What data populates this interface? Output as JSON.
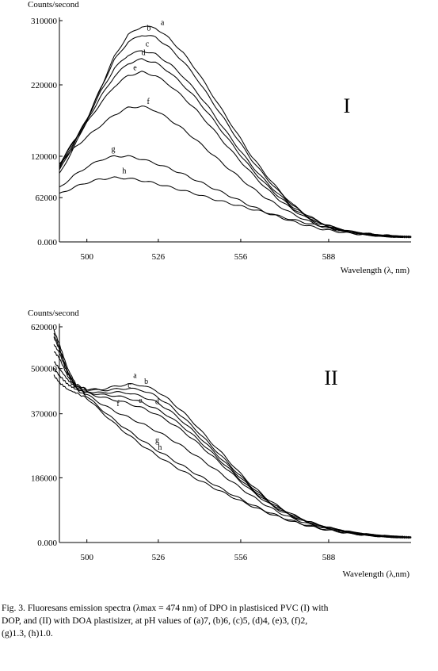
{
  "chart_data": [
    {
      "type": "line",
      "panel_label": "I",
      "ylabel": "Counts/second",
      "xlabel": "Wavelength (λ, nm)",
      "ylim": [
        0,
        310000
      ],
      "xlim": [
        490,
        618
      ],
      "xticks": [
        500,
        526,
        556,
        588
      ],
      "yticks": [
        0,
        62000,
        120000,
        220000,
        310000
      ],
      "ytick_labels": [
        "0.000",
        "62000",
        "120000",
        "220000",
        "310000"
      ],
      "series": [
        {
          "name": "a",
          "x": [
            490,
            495,
            500,
            505,
            510,
            515,
            520,
            525,
            530,
            535,
            540,
            545,
            550,
            555,
            560,
            565,
            570,
            575,
            580,
            585,
            590,
            595,
            600,
            605,
            610,
            615,
            618
          ],
          "y": [
            95000,
            130000,
            170000,
            215000,
            260000,
            290000,
            302000,
            300000,
            285000,
            265000,
            240000,
            210000,
            180000,
            150000,
            120000,
            95000,
            72000,
            52000,
            38000,
            27000,
            20000,
            15000,
            12000,
            9500,
            8000,
            7200,
            7000
          ]
        },
        {
          "name": "b",
          "x": [
            490,
            495,
            500,
            505,
            510,
            515,
            520,
            525,
            530,
            535,
            540,
            545,
            550,
            555,
            560,
            565,
            570,
            575,
            580,
            585,
            590,
            595,
            600,
            605,
            610,
            615,
            618
          ],
          "y": [
            100000,
            135000,
            172000,
            215000,
            255000,
            280000,
            290000,
            287000,
            272000,
            253000,
            229000,
            200000,
            172000,
            143000,
            115000,
            91000,
            70000,
            51000,
            37000,
            27000,
            20000,
            15000,
            12000,
            9500,
            8000,
            7200,
            7000
          ]
        },
        {
          "name": "c",
          "x": [
            490,
            495,
            500,
            505,
            510,
            515,
            520,
            525,
            530,
            535,
            540,
            545,
            550,
            555,
            560,
            565,
            570,
            575,
            580,
            585,
            590,
            595,
            600,
            605,
            610,
            615,
            618
          ],
          "y": [
            103000,
            138000,
            172000,
            210000,
            243000,
            262000,
            268000,
            263000,
            250000,
            232000,
            210000,
            185000,
            158000,
            132000,
            107000,
            85000,
            66000,
            49000,
            36000,
            26000,
            19500,
            14800,
            11800,
            9500,
            8000,
            7200,
            7000
          ]
        },
        {
          "name": "d",
          "x": [
            490,
            495,
            500,
            505,
            510,
            515,
            520,
            525,
            530,
            535,
            540,
            545,
            550,
            555,
            560,
            565,
            570,
            575,
            580,
            585,
            590,
            595,
            600,
            605,
            610,
            615,
            618
          ],
          "y": [
            106000,
            140000,
            170000,
            203000,
            232000,
            250000,
            256000,
            251000,
            238000,
            220000,
            200000,
            176000,
            151000,
            126000,
            102000,
            81000,
            63000,
            47000,
            35000,
            25500,
            19000,
            14600,
            11600,
            9400,
            7900,
            7200,
            7000
          ]
        },
        {
          "name": "e",
          "x": [
            490,
            495,
            500,
            505,
            510,
            515,
            520,
            525,
            530,
            535,
            540,
            545,
            550,
            555,
            560,
            565,
            570,
            575,
            580,
            585,
            590,
            595,
            600,
            605,
            610,
            615,
            618
          ],
          "y": [
            109000,
            140000,
            167000,
            194000,
            218000,
            233000,
            238000,
            233000,
            220000,
            203000,
            184000,
            162000,
            139000,
            117000,
            96000,
            76000,
            59000,
            45000,
            33500,
            24500,
            18500,
            14300,
            11400,
            9300,
            7900,
            7200,
            7000
          ]
        },
        {
          "name": "f",
          "x": [
            490,
            495,
            500,
            505,
            510,
            515,
            520,
            525,
            530,
            535,
            540,
            545,
            550,
            555,
            560,
            565,
            570,
            575,
            580,
            585,
            590,
            595,
            600,
            605,
            610,
            615,
            618
          ],
          "y": [
            110000,
            130000,
            147000,
            163000,
            178000,
            188000,
            190000,
            184000,
            172000,
            158000,
            142000,
            125000,
            108000,
            92000,
            76000,
            62000,
            50000,
            39000,
            30000,
            22500,
            17500,
            13700,
            11000,
            9100,
            7800,
            7100,
            7000
          ]
        },
        {
          "name": "g",
          "x": [
            490,
            495,
            500,
            505,
            510,
            515,
            520,
            525,
            530,
            535,
            540,
            545,
            550,
            555,
            560,
            565,
            570,
            575,
            580,
            585,
            590,
            595,
            600,
            605,
            610,
            615,
            618
          ],
          "y": [
            76000,
            92000,
            105000,
            115000,
            120000,
            120000,
            116000,
            110000,
            103000,
            95000,
            86000,
            77000,
            68000,
            59000,
            50000,
            42000,
            35000,
            28500,
            23000,
            18500,
            15000,
            12500,
            10500,
            9000,
            7800,
            7100,
            7000
          ]
        },
        {
          "name": "h",
          "x": [
            490,
            495,
            500,
            505,
            510,
            515,
            520,
            525,
            530,
            535,
            540,
            545,
            550,
            555,
            560,
            565,
            570,
            575,
            580,
            585,
            590,
            595,
            600,
            605,
            610,
            615,
            618
          ],
          "y": [
            67000,
            76000,
            83000,
            88000,
            90000,
            89000,
            86000,
            82000,
            77000,
            72000,
            67000,
            61000,
            56000,
            51000,
            46000,
            41000,
            36000,
            31000,
            26500,
            22000,
            18000,
            14800,
            12200,
            10200,
            8700,
            7600,
            7200
          ]
        }
      ]
    },
    {
      "type": "line",
      "panel_label": "II",
      "ylabel": "Counts/second",
      "xlabel": "Wavelength (λ,nm)",
      "ylim": [
        0,
        620000
      ],
      "xlim": [
        490,
        618
      ],
      "xticks": [
        500,
        526,
        556,
        588
      ],
      "yticks": [
        0,
        186000,
        370000,
        500000,
        620000
      ],
      "ytick_labels": [
        "0.000",
        "186000",
        "370000",
        "500000",
        "620000"
      ],
      "series": [
        {
          "name": "a",
          "x": [
            488,
            490,
            493,
            496,
            500,
            505,
            510,
            515,
            520,
            525,
            530,
            535,
            540,
            545,
            550,
            555,
            560,
            565,
            570,
            575,
            580,
            585,
            590,
            595,
            600,
            605,
            610,
            615,
            618
          ],
          "y": [
            600000,
            560000,
            490000,
            450000,
            440000,
            440000,
            448000,
            455000,
            452000,
            438000,
            410000,
            375000,
            335000,
            290000,
            250000,
            205000,
            165000,
            130000,
            102000,
            80000,
            62000,
            49000,
            39000,
            31000,
            25000,
            20500,
            17500,
            15500,
            14800
          ]
        },
        {
          "name": "b",
          "x": [
            488,
            490,
            493,
            496,
            500,
            505,
            510,
            515,
            520,
            525,
            530,
            535,
            540,
            545,
            550,
            555,
            560,
            565,
            570,
            575,
            580,
            585,
            590,
            595,
            600,
            605,
            610,
            615,
            618
          ],
          "y": [
            610000,
            570000,
            500000,
            455000,
            440000,
            437000,
            440000,
            443000,
            438000,
            422000,
            395000,
            360000,
            322000,
            280000,
            240000,
            198000,
            160000,
            126000,
            99000,
            78000,
            61000,
            48000,
            38500,
            30500,
            24800,
            20300,
            17400,
            15500,
            14800
          ]
        },
        {
          "name": "c",
          "x": [
            488,
            490,
            493,
            496,
            500,
            505,
            510,
            515,
            520,
            525,
            530,
            535,
            540,
            545,
            550,
            555,
            560,
            565,
            570,
            575,
            580,
            585,
            590,
            595,
            600,
            605,
            610,
            615,
            618
          ],
          "y": [
            590000,
            555000,
            490000,
            450000,
            435000,
            430000,
            432000,
            430000,
            420000,
            405000,
            380000,
            347000,
            311000,
            271000,
            232000,
            193000,
            156000,
            123000,
            97000,
            76500,
            60000,
            47500,
            38000,
            30300,
            24600,
            20200,
            17300,
            15400,
            14800
          ]
        },
        {
          "name": "d",
          "x": [
            488,
            490,
            493,
            496,
            500,
            505,
            510,
            515,
            520,
            525,
            530,
            535,
            540,
            545,
            550,
            555,
            560,
            565,
            570,
            575,
            580,
            585,
            590,
            595,
            600,
            605,
            610,
            615,
            618
          ],
          "y": [
            570000,
            545000,
            485000,
            448000,
            432000,
            425000,
            422000,
            415000,
            403000,
            385000,
            362000,
            333000,
            299000,
            262000,
            225000,
            187000,
            152000,
            121000,
            95000,
            75500,
            59500,
            47000,
            37800,
            30100,
            24500,
            20100,
            17200,
            15400,
            14800
          ]
        },
        {
          "name": "e",
          "x": [
            488,
            490,
            493,
            496,
            500,
            505,
            510,
            515,
            520,
            525,
            530,
            535,
            540,
            545,
            550,
            555,
            560,
            565,
            570,
            575,
            580,
            585,
            590,
            595,
            600,
            605,
            610,
            615,
            618
          ],
          "y": [
            550000,
            530000,
            478000,
            445000,
            430000,
            418000,
            410000,
            400000,
            387000,
            370000,
            347000,
            320000,
            288000,
            253000,
            218000,
            182000,
            148000,
            118000,
            93000,
            74000,
            58500,
            46500,
            37400,
            30000,
            24400,
            20000,
            17200,
            15300,
            14800
          ]
        },
        {
          "name": "f",
          "x": [
            488,
            490,
            493,
            496,
            500,
            505,
            510,
            515,
            520,
            525,
            530,
            535,
            540,
            545,
            550,
            555,
            560,
            565,
            570,
            575,
            580,
            585,
            590,
            595,
            600,
            605,
            610,
            615,
            618
          ],
          "y": [
            520000,
            500000,
            468000,
            445000,
            425000,
            400000,
            378000,
            360000,
            342000,
            322000,
            300000,
            275000,
            248000,
            220000,
            191000,
            162000,
            134000,
            108000,
            86000,
            69000,
            55000,
            44000,
            35800,
            29000,
            23800,
            19700,
            17000,
            15200,
            14800
          ]
        },
        {
          "name": "g",
          "x": [
            488,
            490,
            493,
            496,
            500,
            505,
            510,
            515,
            520,
            525,
            530,
            535,
            540,
            545,
            550,
            555,
            560,
            565,
            570,
            575,
            580,
            585,
            590,
            595,
            600,
            605,
            610,
            615,
            618
          ],
          "y": [
            500000,
            480000,
            455000,
            440000,
            420000,
            385000,
            352000,
            322000,
            294000,
            268000,
            244000,
            220000,
            196000,
            173000,
            150000,
            129000,
            109000,
            91000,
            75000,
            61500,
            50000,
            40800,
            33800,
            27800,
            23000,
            19300,
            16800,
            15100,
            14800
          ]
        },
        {
          "name": "h",
          "x": [
            488,
            490,
            493,
            496,
            500,
            505,
            510,
            515,
            520,
            525,
            530,
            535,
            540,
            545,
            550,
            555,
            560,
            565,
            570,
            575,
            580,
            585,
            590,
            595,
            600,
            605,
            610,
            615,
            618
          ],
          "y": [
            480000,
            460000,
            440000,
            430000,
            415000,
            378000,
            342000,
            310000,
            280000,
            253000,
            228000,
            205000,
            183000,
            162000,
            142000,
            123000,
            105000,
            88000,
            73000,
            60000,
            49000,
            40000,
            33000,
            27300,
            22700,
            19100,
            16700,
            15000,
            14800
          ]
        }
      ]
    }
  ],
  "caption": {
    "line1": "Fig. 3. Fluoresans emission spectra (λmax = 474 nm) of DPO in plastisiced PVC (I) with",
    "line2": "DOP, and (II) with DOA plastisizer, at pH values of (a)7, (b)6, (c)5, (d)4, (e)3, (f)2,",
    "line3": "(g)1.3, (h)1.0."
  }
}
